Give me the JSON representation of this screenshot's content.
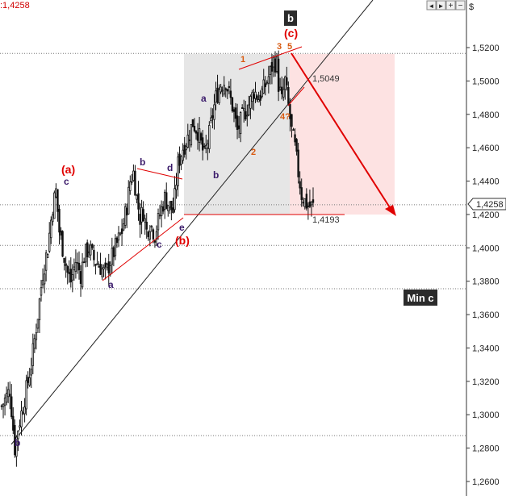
{
  "header": {
    "price_readout": ":1,4258",
    "currency_symbol": "$",
    "nav_buttons": [
      "◄",
      "►",
      "+",
      "−"
    ]
  },
  "colors": {
    "candle": "#111111",
    "accent_red": "#e00000",
    "wave_purple": "#3a1a6a",
    "wave_orange": "#d85a10",
    "gray_zone": "#e6e6e6",
    "pink_zone": "#fde2e2",
    "badge_bg": "#2b2b2b"
  },
  "chart_data": {
    "type": "candlestick",
    "y_unit": "$",
    "ylim": [
      1.2475,
      1.555
    ],
    "y_ticks": [
      "1,5200",
      "1,5000",
      "1,4800",
      "1,4600",
      "1,4400",
      "1,4200",
      "1,4000",
      "1,3800",
      "1,3600",
      "1,3400",
      "1,3200",
      "1,3000",
      "1,2800",
      "1,2600"
    ],
    "y_tick_values": [
      1.52,
      1.5,
      1.48,
      1.46,
      1.44,
      1.42,
      1.4,
      1.38,
      1.36,
      1.34,
      1.32,
      1.3,
      1.28,
      1.26
    ],
    "bars_count": 190,
    "close_path": [
      [
        0,
        1.305
      ],
      [
        5,
        1.315
      ],
      [
        8,
        1.28
      ],
      [
        10,
        1.292
      ],
      [
        14,
        1.31
      ],
      [
        18,
        1.33
      ],
      [
        22,
        1.36
      ],
      [
        25,
        1.385
      ],
      [
        28,
        1.4
      ],
      [
        31,
        1.425
      ],
      [
        33,
        1.434
      ],
      [
        35,
        1.41
      ],
      [
        38,
        1.395
      ],
      [
        40,
        1.385
      ],
      [
        42,
        1.38
      ],
      [
        45,
        1.392
      ],
      [
        48,
        1.384
      ],
      [
        50,
        1.395
      ],
      [
        53,
        1.4
      ],
      [
        56,
        1.393
      ],
      [
        59,
        1.39
      ],
      [
        61,
        1.387
      ],
      [
        63,
        1.384
      ],
      [
        66,
        1.392
      ],
      [
        69,
        1.4
      ],
      [
        73,
        1.41
      ],
      [
        76,
        1.425
      ],
      [
        78,
        1.44
      ],
      [
        80,
        1.445
      ],
      [
        82,
        1.43
      ],
      [
        84,
        1.418
      ],
      [
        86,
        1.422
      ],
      [
        88,
        1.41
      ],
      [
        90,
        1.415
      ],
      [
        93,
        1.408
      ],
      [
        96,
        1.42
      ],
      [
        99,
        1.43
      ],
      [
        102,
        1.425
      ],
      [
        104,
        1.422
      ],
      [
        105,
        1.43
      ],
      [
        107,
        1.45
      ],
      [
        110,
        1.46
      ],
      [
        113,
        1.466
      ],
      [
        116,
        1.475
      ],
      [
        119,
        1.47
      ],
      [
        121,
        1.462
      ],
      [
        123,
        1.455
      ],
      [
        126,
        1.468
      ],
      [
        128,
        1.48
      ],
      [
        130,
        1.49
      ],
      [
        133,
        1.498
      ],
      [
        136,
        1.5
      ],
      [
        138,
        1.492
      ],
      [
        140,
        1.485
      ],
      [
        143,
        1.47
      ],
      [
        146,
        1.478
      ],
      [
        149,
        1.484
      ],
      [
        151,
        1.488
      ],
      [
        153,
        1.494
      ],
      [
        156,
        1.49
      ],
      [
        159,
        1.495
      ],
      [
        161,
        1.5
      ],
      [
        163,
        1.505
      ],
      [
        165,
        1.512
      ],
      [
        167,
        1.51
      ],
      [
        168,
        1.498
      ],
      [
        170,
        1.488
      ],
      [
        172,
        1.5
      ],
      [
        174,
        1.485
      ],
      [
        176,
        1.47
      ],
      [
        178,
        1.46
      ],
      [
        180,
        1.445
      ],
      [
        182,
        1.432
      ],
      [
        184,
        1.428
      ],
      [
        186,
        1.425
      ]
    ],
    "levels": [
      {
        "label": "1,5049",
        "value": 1.5049
      },
      {
        "label": "1,4193",
        "value": 1.4193
      }
    ],
    "horizontal_dotted_lines": [
      1.5165,
      1.4258,
      1.4015,
      1.3755,
      1.2875
    ],
    "current_price_tag": "1,4258",
    "current_price": 1.4258,
    "badges": [
      "b",
      "Min c"
    ],
    "wave_labels": [
      {
        "text": "(a)",
        "color": "red"
      },
      {
        "text": "(b)",
        "color": "red"
      },
      {
        "text": "(c)",
        "color": "red"
      },
      {
        "text": "a",
        "color": "purple"
      },
      {
        "text": "b",
        "color": "purple"
      },
      {
        "text": "c",
        "color": "purple"
      },
      {
        "text": "d",
        "color": "purple"
      },
      {
        "text": "e",
        "color": "purple"
      },
      {
        "text": "1",
        "color": "orange"
      },
      {
        "text": "2",
        "color": "orange"
      },
      {
        "text": "3",
        "color": "orange"
      },
      {
        "text": "4?",
        "color": "orange"
      },
      {
        "text": "5",
        "color": "orange"
      }
    ]
  }
}
